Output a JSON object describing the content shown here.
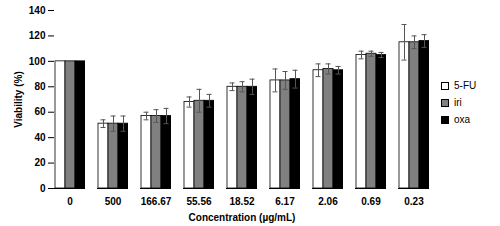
{
  "chart_data": {
    "type": "bar",
    "x_label": "Concentration (µg/mL)",
    "y_label": "Viability (%)",
    "categories": [
      "0",
      "500",
      "166.67",
      "55.56",
      "18.52",
      "6.17",
      "2.06",
      "0.69",
      "0.23"
    ],
    "series": [
      {
        "name": "5-FU",
        "color": "#ffffff",
        "values": [
          100,
          51,
          57,
          68,
          80,
          85,
          93,
          105,
          115
        ],
        "errors": [
          0,
          3,
          3,
          4,
          3,
          9,
          5,
          3,
          14
        ]
      },
      {
        "name": "iri",
        "color": "#808080",
        "values": [
          100,
          51,
          57,
          69,
          80,
          85,
          94,
          106,
          115
        ],
        "errors": [
          0,
          6,
          5,
          9,
          4,
          7,
          4,
          2,
          5
        ]
      },
      {
        "name": "oxa",
        "color": "#000000",
        "values": [
          100,
          51,
          57,
          69,
          80,
          86,
          93,
          105,
          116
        ],
        "errors": [
          0,
          6,
          6,
          5,
          6,
          7,
          3,
          2,
          5
        ]
      }
    ],
    "ylim": [
      0,
      140
    ],
    "yticks": [
      0,
      20,
      40,
      60,
      80,
      100,
      120,
      140
    ],
    "grid": false,
    "legend": "right"
  }
}
